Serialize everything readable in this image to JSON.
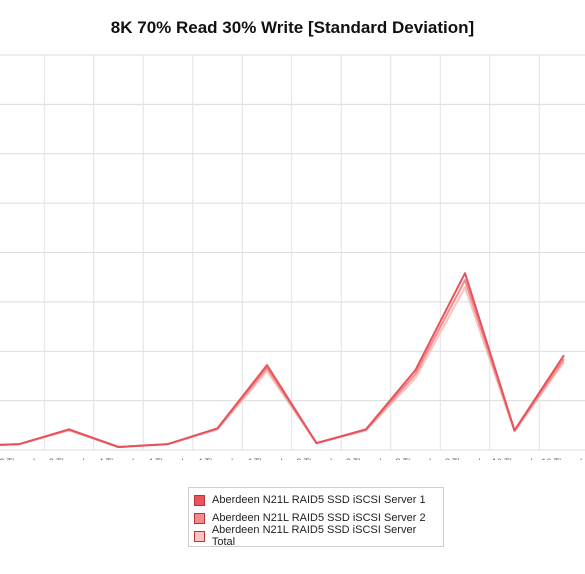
{
  "chart_data": {
    "type": "line",
    "title": "8K 70% Read 30% Write [Standard Deviation]",
    "categories": [
      [
        "2 Threads",
        "4 Queue"
      ],
      [
        "2 Threads",
        "8 Queue"
      ],
      [
        "2 Threads",
        "16 Queue"
      ],
      [
        "4 Threads",
        "2 Queue"
      ],
      [
        "4 Threads",
        "4 Queue"
      ],
      [
        "4 Threads",
        "8 Queue"
      ],
      [
        "4 Threads",
        "16 Queue"
      ],
      [
        "8 Threads",
        "2 Queue"
      ],
      [
        "8 Threads",
        "4 Queue"
      ],
      [
        "8 Threads",
        "8 Queue"
      ],
      [
        "8 Threads",
        "16 Queue"
      ],
      [
        "16 Threads",
        "2 Queue"
      ],
      [
        "16 Threads",
        "4 Queue"
      ]
    ],
    "series": [
      {
        "name": "Aberdeen N21L RAID5 SSD iSCSI Server 1",
        "color": "#e8525a",
        "values": [
          0.08,
          0.12,
          0.42,
          0.06,
          0.12,
          0.44,
          1.72,
          0.14,
          0.42,
          1.62,
          3.58,
          0.4,
          1.92
        ]
      },
      {
        "name": "Aberdeen N21L RAID5 SSD iSCSI Server 2",
        "color": "#f08c8c",
        "values": [
          0.08,
          0.12,
          0.41,
          0.06,
          0.12,
          0.43,
          1.66,
          0.14,
          0.41,
          1.54,
          3.44,
          0.39,
          1.84
        ]
      },
      {
        "name": "Aberdeen N21L RAID5 SSD iSCSI Server Total",
        "color": "#f7c3c3",
        "values": [
          0.08,
          0.12,
          0.4,
          0.06,
          0.12,
          0.42,
          1.6,
          0.14,
          0.4,
          1.46,
          3.3,
          0.38,
          1.78
        ]
      }
    ],
    "ylim": [
      0,
      8
    ],
    "grid": true,
    "legend_position": "bottom-center"
  }
}
